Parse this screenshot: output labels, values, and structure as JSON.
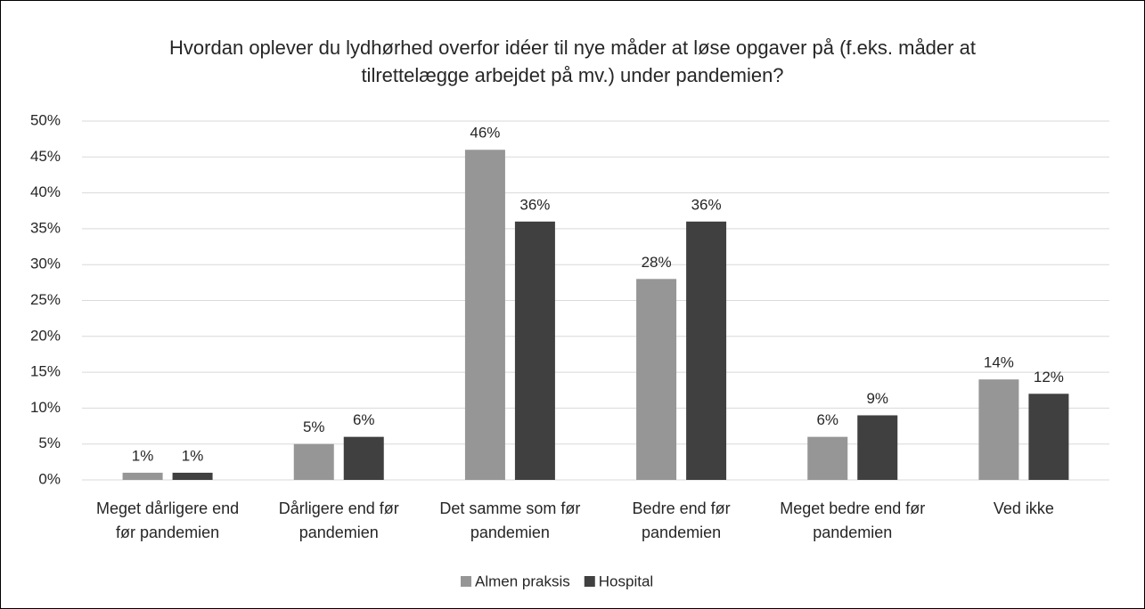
{
  "chart_data": {
    "type": "bar",
    "title": "Hvordan oplever du lydhørhed overfor idéer til nye måder at løse opgaver på (f.eks. måder at tilrettelægge arbejdet på mv.) under pandemien?",
    "categories": [
      "Meget dårligere end før pandemien",
      "Dårligere end før pandemien",
      "Det samme som før pandemien",
      "Bedre end før pandemien",
      "Meget bedre end før pandemien",
      "Ved ikke"
    ],
    "series": [
      {
        "name": "Almen praksis",
        "color": "#969696",
        "values": [
          1,
          5,
          46,
          28,
          6,
          14
        ],
        "value_labels": [
          "1%",
          "5%",
          "46%",
          "28%",
          "6%",
          "14%"
        ]
      },
      {
        "name": "Hospital",
        "color": "#404040",
        "values": [
          1,
          6,
          36,
          36,
          9,
          12
        ],
        "value_labels": [
          "1%",
          "6%",
          "36%",
          "36%",
          "9%",
          "12%"
        ]
      }
    ],
    "ylim": [
      0,
      50
    ],
    "yticks": [
      {
        "value": 0,
        "label": "0%"
      },
      {
        "value": 5,
        "label": "5%"
      },
      {
        "value": 10,
        "label": "10%"
      },
      {
        "value": 15,
        "label": "15%"
      },
      {
        "value": 20,
        "label": "20%"
      },
      {
        "value": 25,
        "label": "25%"
      },
      {
        "value": 30,
        "label": "30%"
      },
      {
        "value": 35,
        "label": "35%"
      },
      {
        "value": 40,
        "label": "40%"
      },
      {
        "value": 45,
        "label": "45%"
      },
      {
        "value": 50,
        "label": "50%"
      }
    ],
    "grid": true,
    "legend": "bottom"
  }
}
